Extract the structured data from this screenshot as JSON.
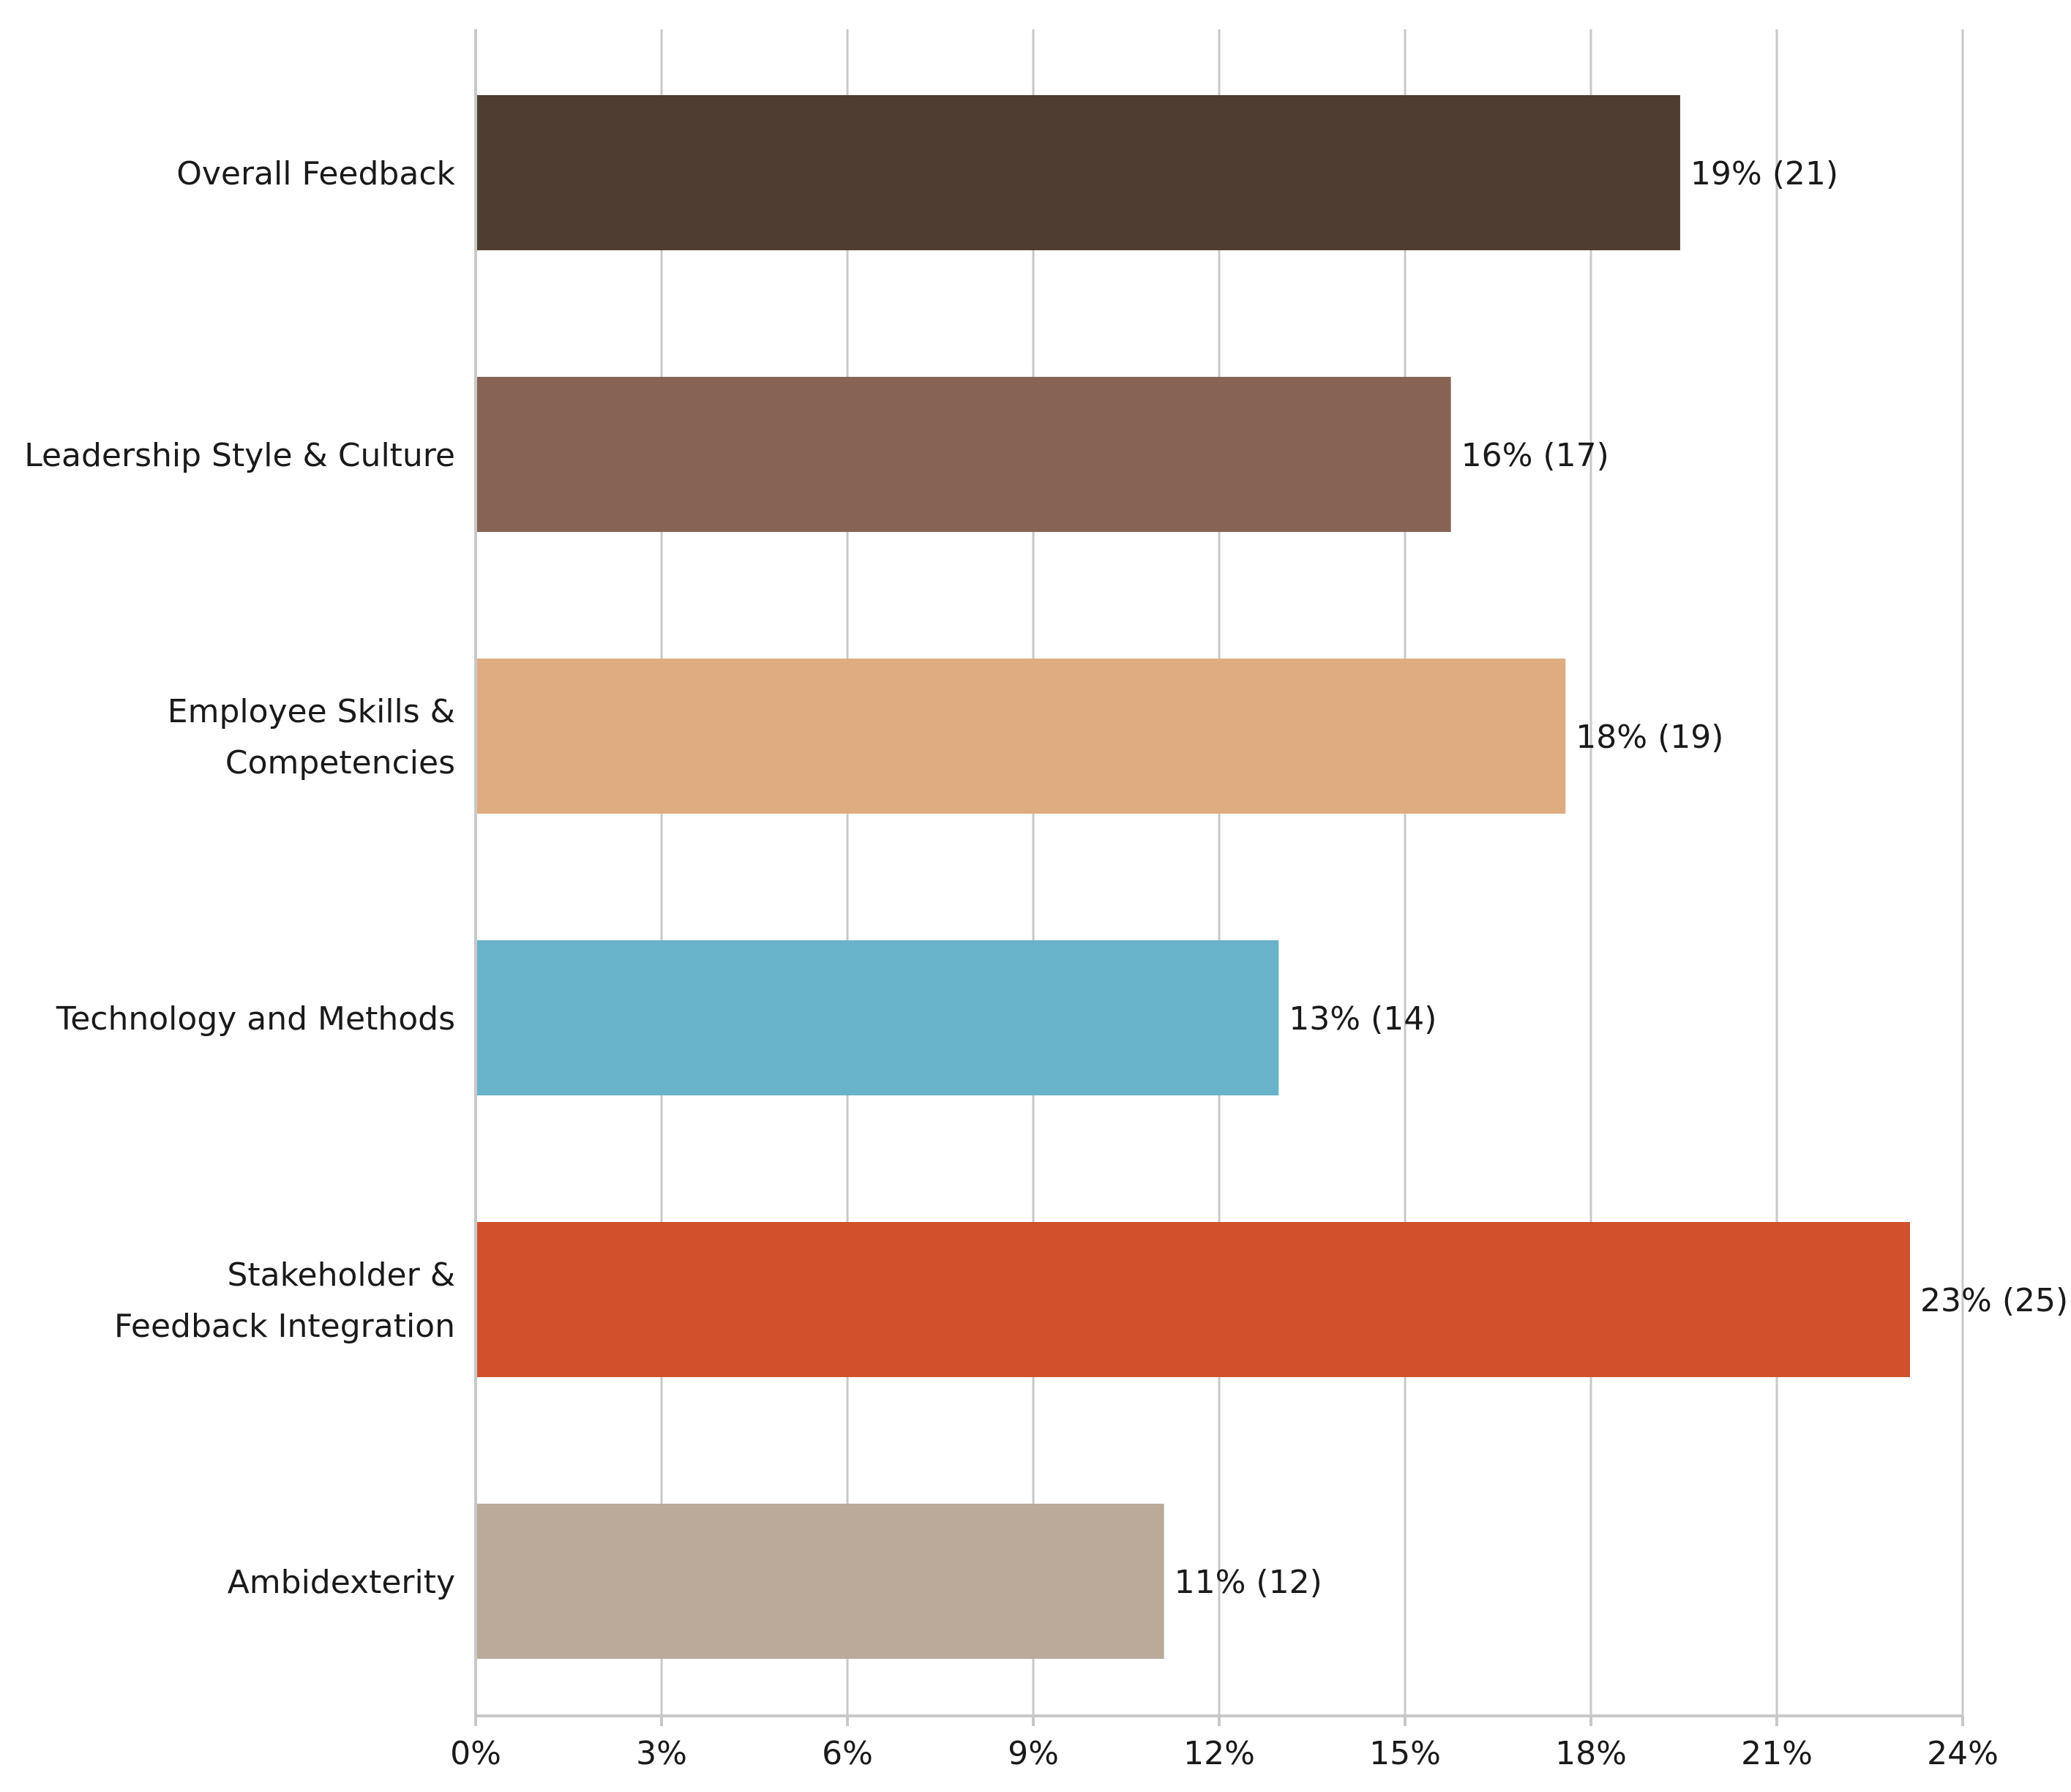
{
  "chart_data": {
    "type": "bar",
    "orientation": "horizontal",
    "title": "",
    "xlabel": "",
    "ylabel": "",
    "xlim": [
      0,
      24
    ],
    "ticks": [
      0,
      3,
      6,
      9,
      12,
      15,
      18,
      21,
      24
    ],
    "tick_labels": [
      "0%",
      "3%",
      "6%",
      "9%",
      "12%",
      "15%",
      "18%",
      "21%",
      "24%"
    ],
    "grid": true,
    "categories": [
      [
        "Overall Feedback"
      ],
      [
        "Leadership Style & Culture"
      ],
      [
        "Employee Skills &",
        "Competencies"
      ],
      [
        "Technology and Methods"
      ],
      [
        "Stakeholder &",
        "Feedback Integration"
      ],
      [
        "Ambidexterity"
      ]
    ],
    "values": [
      19.44,
      15.74,
      17.59,
      12.96,
      23.15,
      11.11
    ],
    "counts": [
      21,
      17,
      19,
      14,
      25,
      12
    ],
    "value_labels": [
      "19% (21)",
      "16% (17)",
      "18% (19)",
      "13% (14)",
      "23% (25)",
      "11% (12)"
    ],
    "colors": [
      "#4f3d32",
      "#876356",
      "#dfac81",
      "#68b3c9",
      "#d0512c",
      "#bba999"
    ]
  }
}
